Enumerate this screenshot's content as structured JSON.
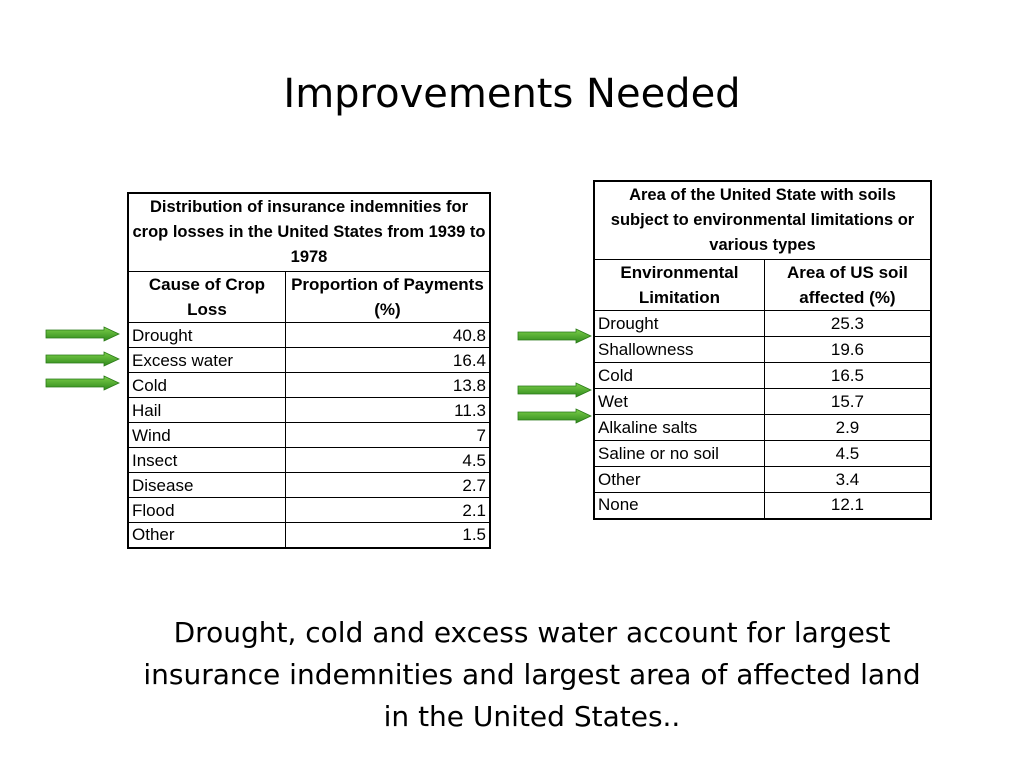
{
  "slide": {
    "title": "Improvements Needed",
    "summary": "Drought, cold and excess water account for largest insurance indemnities and largest area of affected land in the United States.."
  },
  "left_table": {
    "caption": "Distribution of insurance indemnities for crop losses in the United States from 1939 to 1978",
    "headers": [
      "Cause of Crop Loss",
      "Proportion of Payments (%)"
    ],
    "rows": [
      {
        "label": "Drought",
        "value": "40.8"
      },
      {
        "label": "Excess water",
        "value": "16.4"
      },
      {
        "label": "Cold",
        "value": "13.8"
      },
      {
        "label": "Hail",
        "value": "11.3"
      },
      {
        "label": "Wind",
        "value": "7"
      },
      {
        "label": "Insect",
        "value": "4.5"
      },
      {
        "label": "Disease",
        "value": "2.7"
      },
      {
        "label": "Flood",
        "value": "2.1"
      },
      {
        "label": "Other",
        "value": "1.5"
      }
    ]
  },
  "right_table": {
    "caption": "Area of the United State with soils subject to environmental limitations or various types",
    "headers": [
      "Environmental Limitation",
      "Area of US soil affected (%)"
    ],
    "rows": [
      {
        "label": "Drought",
        "value": "25.3"
      },
      {
        "label": "Shallowness",
        "value": "19.6"
      },
      {
        "label": "Cold",
        "value": "16.5"
      },
      {
        "label": "Wet",
        "value": "15.7"
      },
      {
        "label": "Alkaline salts",
        "value": "2.9"
      },
      {
        "label": "Saline or no soil",
        "value": "4.5"
      },
      {
        "label": "Other",
        "value": "3.4"
      },
      {
        "label": "None",
        "value": "12.1"
      }
    ]
  },
  "arrows": {
    "icon": "green-arrow-icon",
    "color_light": "#7dd04a",
    "color_dark": "#2f8a1c"
  }
}
